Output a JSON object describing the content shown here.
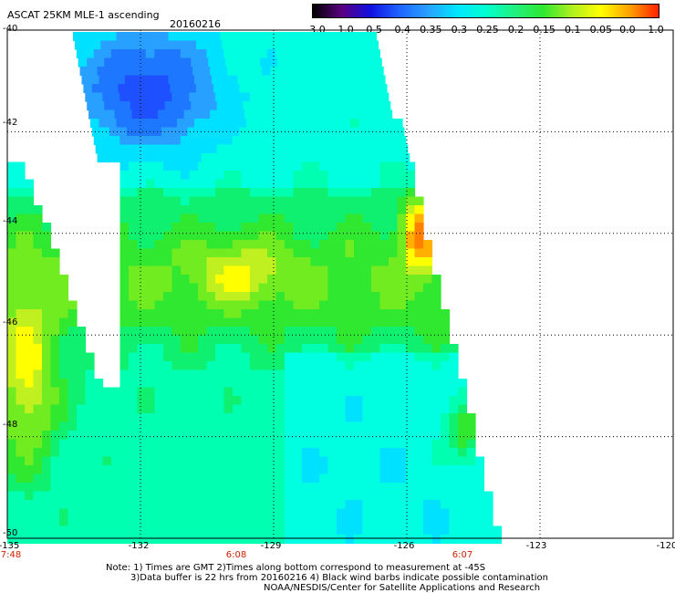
{
  "title": "ASCAT 25KM MLE-1 ascending",
  "date": "20160216",
  "colorbar": {
    "labels": [
      "-3.0",
      "-1.0",
      "-0.5",
      "-0.4",
      "-0.35",
      "-0.3",
      "-0.25",
      "-0.2",
      "-0.15",
      "-0.1",
      "-0.05",
      "0.0",
      "1.0"
    ],
    "colors": [
      "#000000",
      "#5a0080",
      "#1010e0",
      "#1e64ff",
      "#28a0ff",
      "#00e6ff",
      "#00ffd0",
      "#20f080",
      "#30e830",
      "#b0f020",
      "#ffff00",
      "#ffa000",
      "#ff2000"
    ]
  },
  "axes": {
    "latitudes": [
      "-40",
      "-42",
      "-44",
      "-46",
      "-48",
      "-50"
    ],
    "longitudes": [
      "-135",
      "-132",
      "-129",
      "-126",
      "-123",
      "-120"
    ],
    "lon_range": [
      -135,
      -120
    ],
    "lat_range": [
      -50,
      -40
    ]
  },
  "times": [
    "7:48",
    "6:08",
    "6:07"
  ],
  "notes": {
    "line1": "Note: 1) Times are GMT 2)Times along bottom correspond to measurement at -45S",
    "line2": "3)Data buffer is 22 hrs from 20160216 4) Black wind barbs indicate possible contamination",
    "line3": "NOAA/NESDIS/Center for Satellite Applications and Research"
  }
}
